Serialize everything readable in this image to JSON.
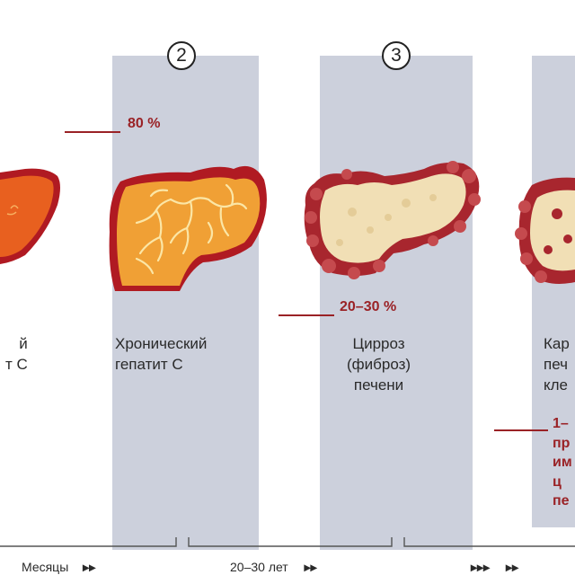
{
  "stages": {
    "stage1": {
      "label_lines": [
        "й",
        "т С"
      ]
    },
    "stage2": {
      "number": "2",
      "label_lines": [
        "Хронический",
        "гепатит С"
      ]
    },
    "stage3": {
      "number": "3",
      "label_lines": [
        "Цирроз",
        "(фиброз)",
        "печени"
      ]
    },
    "stage4": {
      "label_lines": [
        "Кар",
        "печ",
        "кле"
      ]
    }
  },
  "percentages": {
    "chronic": "80 %",
    "cirrhosis": "20–30 %",
    "cancer_lines": [
      "1–",
      "пр",
      "им",
      "ц",
      "пе"
    ]
  },
  "timeline": {
    "months": "Месяцы",
    "years": "20–30 лет",
    "arrows_double": "▸▸",
    "arrows_triple": "▸▸▸"
  },
  "colors": {
    "panel": "#ccd0dc",
    "healthy_liver": "#f0a035",
    "acute_liver": "#e8601f",
    "liver_border": "#b01a22",
    "cirrhosis_tissue": "#f1dfb5",
    "cirrhosis_edge": "#a8262e",
    "percent_red": "#9a2226"
  }
}
